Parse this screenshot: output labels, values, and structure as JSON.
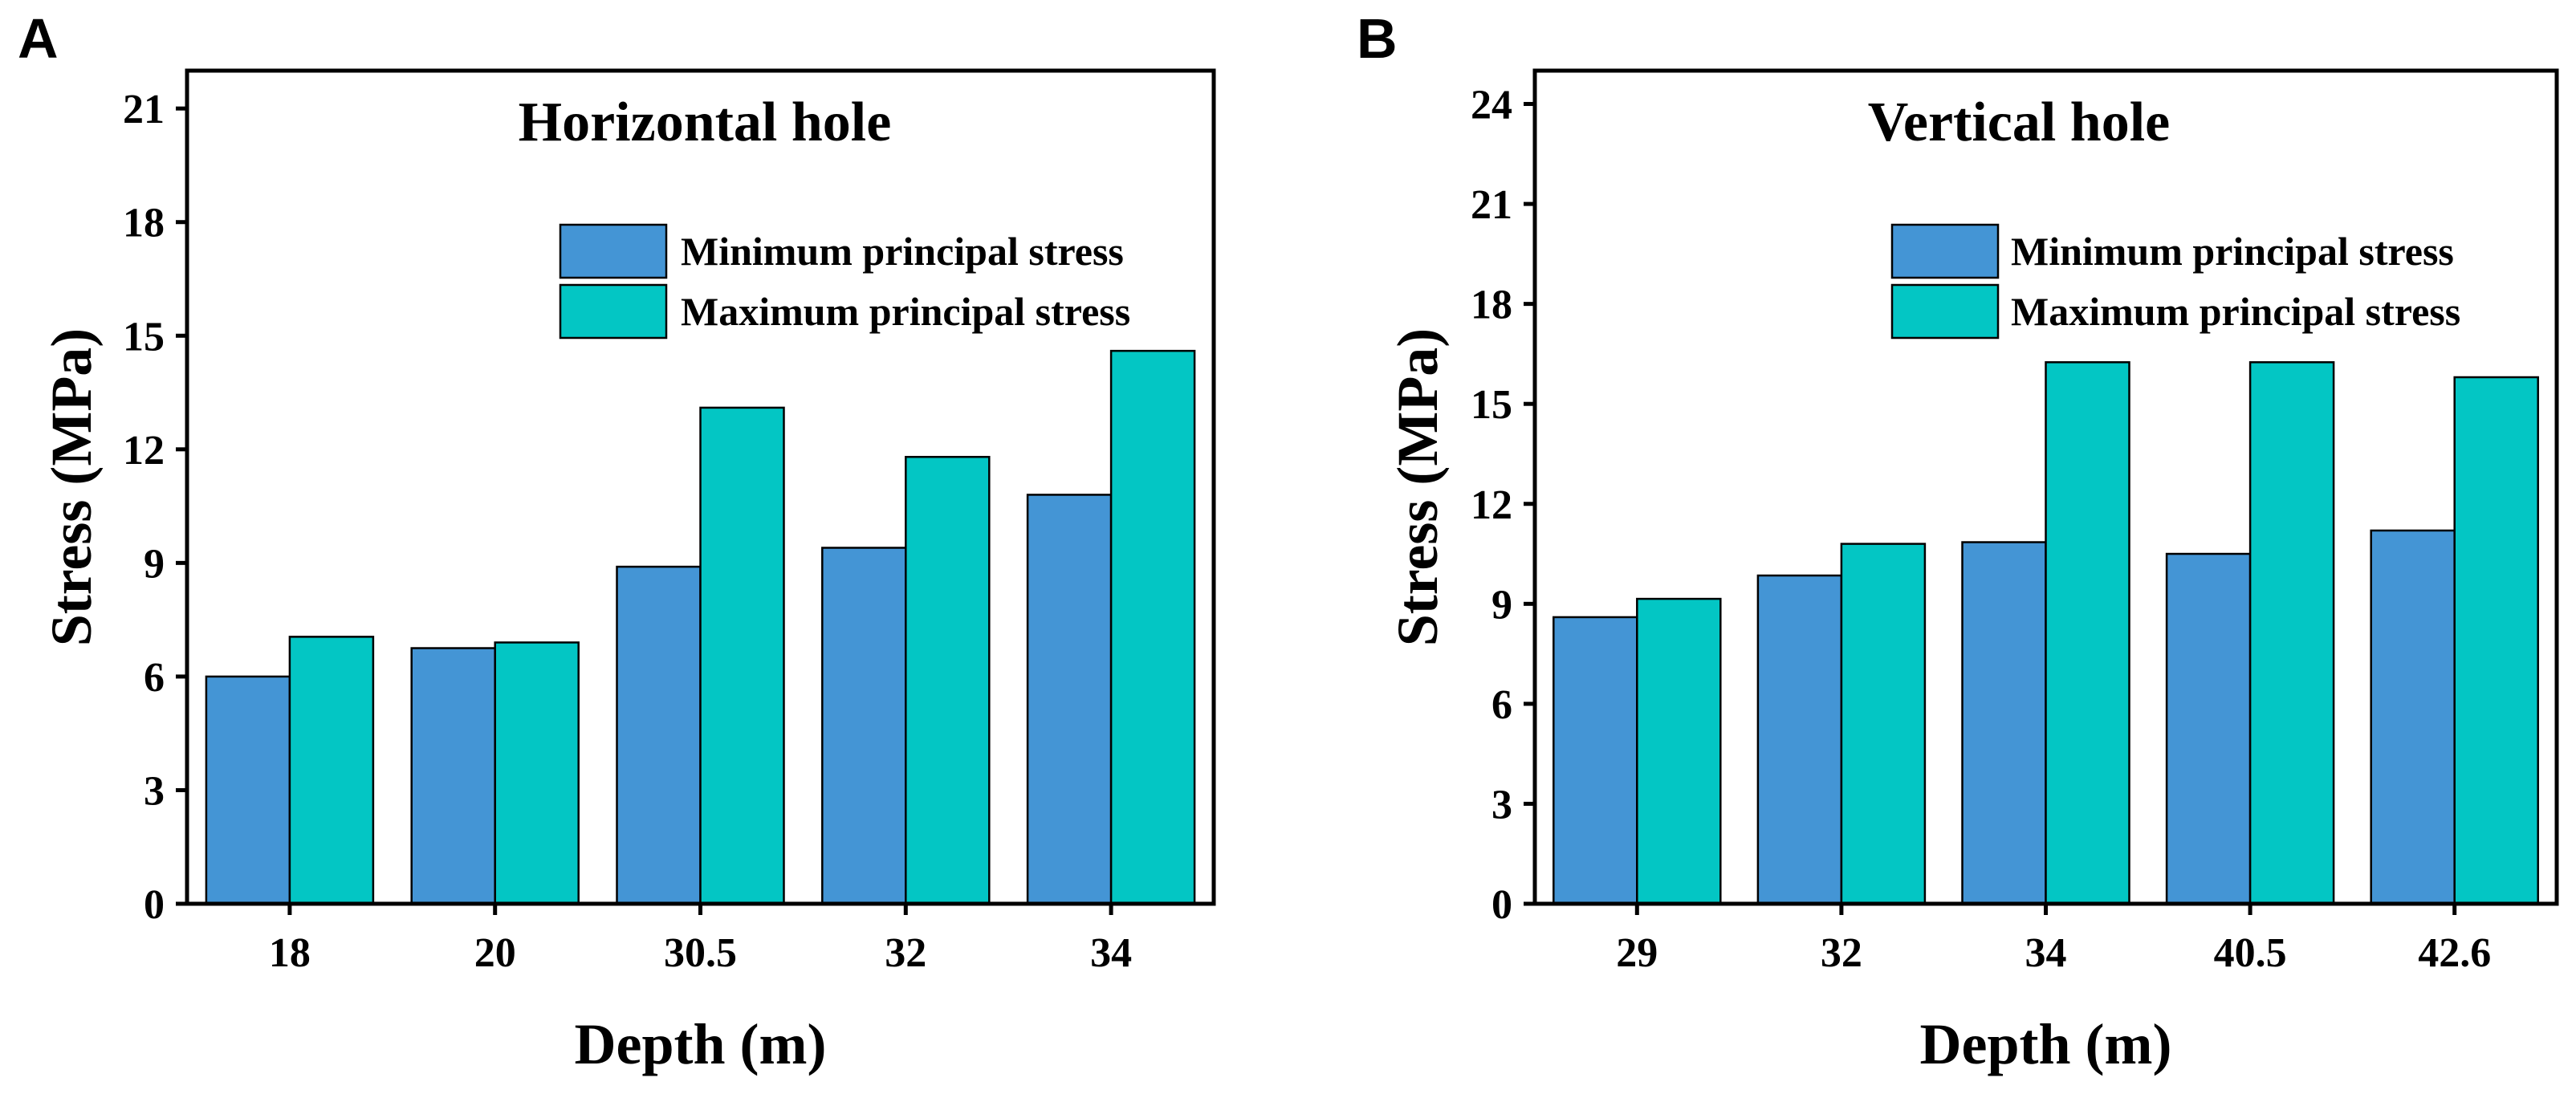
{
  "colors": {
    "min_bar": "#4495d5",
    "max_bar": "#03c6c4",
    "axis": "#000000"
  },
  "chart_data": [
    {
      "type": "bar",
      "panel": "A",
      "title": "Horizontal hole",
      "xlabel": "Depth (m)",
      "ylabel": "Stress (MPa)",
      "categories": [
        "18",
        "20",
        "30.5",
        "32",
        "34"
      ],
      "ylim": [
        0,
        22
      ],
      "yticks": [
        0,
        3,
        6,
        9,
        12,
        15,
        18,
        21
      ],
      "legend_position": "top-right",
      "series": [
        {
          "name": "Minimum principal stress",
          "color_key": "min_bar",
          "values": [
            6.0,
            6.75,
            8.9,
            9.4,
            10.8
          ]
        },
        {
          "name": "Maximum principal stress",
          "color_key": "max_bar",
          "values": [
            7.05,
            6.9,
            13.1,
            11.8,
            14.6
          ]
        }
      ]
    },
    {
      "type": "bar",
      "panel": "B",
      "title": "Vertical hole",
      "xlabel": "Depth (m)",
      "ylabel": "Stress (MPa)",
      "categories": [
        "29",
        "32",
        "34",
        "40.5",
        "42.6"
      ],
      "ylim": [
        0,
        25
      ],
      "yticks": [
        0,
        3,
        6,
        9,
        12,
        15,
        18,
        21,
        24
      ],
      "legend_position": "top-right",
      "series": [
        {
          "name": "Minimum principal stress",
          "color_key": "min_bar",
          "values": [
            8.6,
            9.85,
            10.85,
            10.5,
            11.2
          ]
        },
        {
          "name": "Maximum principal stress",
          "color_key": "max_bar",
          "values": [
            9.15,
            10.8,
            16.25,
            16.25,
            15.8
          ]
        }
      ]
    }
  ]
}
